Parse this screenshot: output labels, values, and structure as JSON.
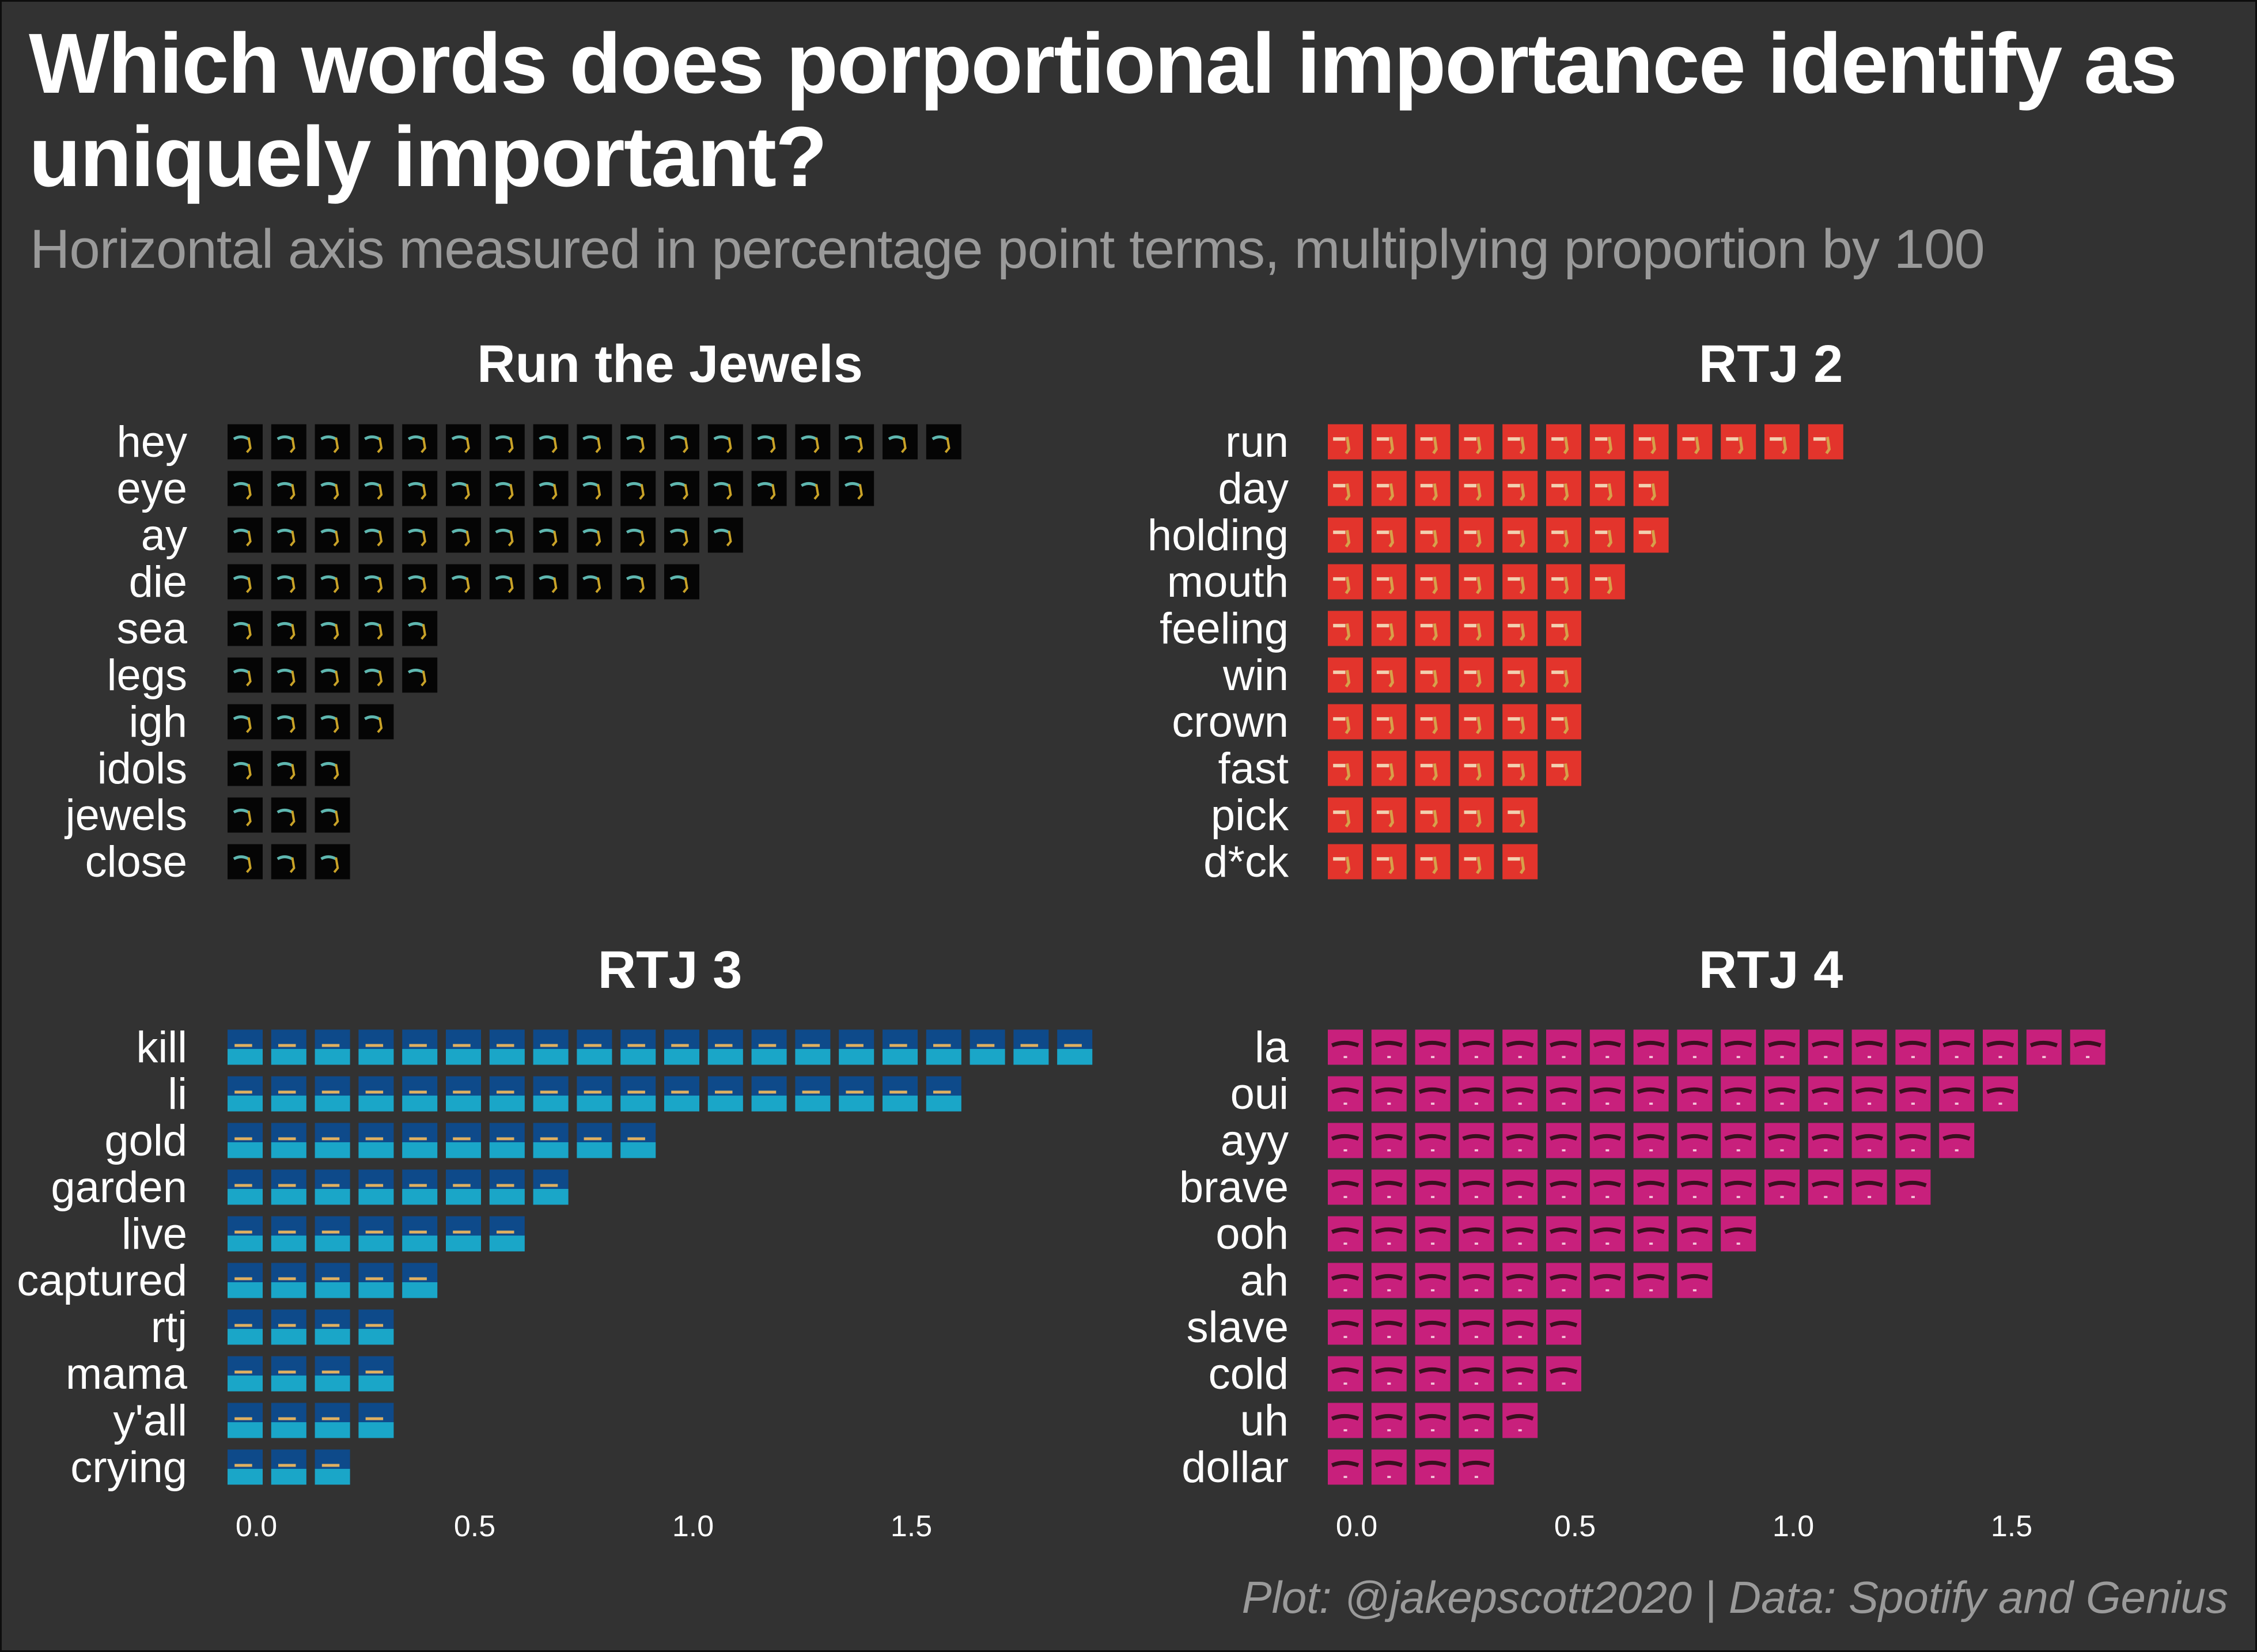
{
  "title": "Which words does porportional importance identify as uniquely important?",
  "subtitle": "Horizontal axis measured in percentage point terms, multiplying proportion by 100",
  "caption": "Plot: @jakepscott2020 | Data: Spotify and Genius",
  "colors": {
    "background": "#323232",
    "title": "#ffffff",
    "subtitle": "#9a9a9a"
  },
  "chart_data": [
    {
      "type": "bar",
      "subtype": "pictogram",
      "title": "Run the Jewels",
      "icon": "run-the-jewels-album-cover-icon",
      "unit_value": 0.1,
      "categories": [
        "hey",
        "eye",
        "ay",
        "die",
        "sea",
        "legs",
        "igh",
        "idols",
        "jewels",
        "close"
      ],
      "values": [
        1.7,
        1.5,
        1.2,
        1.1,
        0.5,
        0.5,
        0.4,
        0.3,
        0.3,
        0.3
      ],
      "xticks": [
        "0.0",
        "0.5",
        "1.0",
        "1.5"
      ],
      "xlim": [
        0,
        1.95
      ],
      "color": "#050505"
    },
    {
      "type": "bar",
      "subtype": "pictogram",
      "title": "RTJ 2",
      "icon": "rtj2-album-cover-icon",
      "unit_value": 0.1,
      "categories": [
        "run",
        "day",
        "holding",
        "mouth",
        "feeling",
        "win",
        "crown",
        "fast",
        "pick",
        "d*ck"
      ],
      "values": [
        1.2,
        0.8,
        0.8,
        0.7,
        0.6,
        0.6,
        0.6,
        0.6,
        0.5,
        0.5
      ],
      "xticks": [
        "0.0",
        "0.5",
        "1.0",
        "1.5"
      ],
      "xlim": [
        0,
        1.95
      ],
      "color": "#e3342c"
    },
    {
      "type": "bar",
      "subtype": "pictogram",
      "title": "RTJ 3",
      "icon": "rtj3-album-cover-icon",
      "unit_value": 0.1,
      "categories": [
        "kill",
        "li",
        "gold",
        "garden",
        "live",
        "captured",
        "rtj",
        "mama",
        "y'all",
        "crying"
      ],
      "values": [
        2.0,
        1.7,
        1.0,
        0.8,
        0.7,
        0.5,
        0.4,
        0.4,
        0.4,
        0.3
      ],
      "xticks": [
        "0.0",
        "0.5",
        "1.0",
        "1.5"
      ],
      "xlim": [
        0,
        1.95
      ],
      "color": "#0e4a8a"
    },
    {
      "type": "bar",
      "subtype": "pictogram",
      "title": "RTJ 4",
      "icon": "rtj4-album-cover-icon",
      "unit_value": 0.1,
      "categories": [
        "la",
        "oui",
        "ayy",
        "brave",
        "ooh",
        "ah",
        "slave",
        "cold",
        "uh",
        "dollar"
      ],
      "values": [
        1.8,
        1.6,
        1.5,
        1.4,
        1.0,
        0.9,
        0.6,
        0.6,
        0.5,
        0.4
      ],
      "xticks": [
        "0.0",
        "0.5",
        "1.0",
        "1.5"
      ],
      "xlim": [
        0,
        1.95
      ],
      "color": "#c8207c"
    }
  ]
}
